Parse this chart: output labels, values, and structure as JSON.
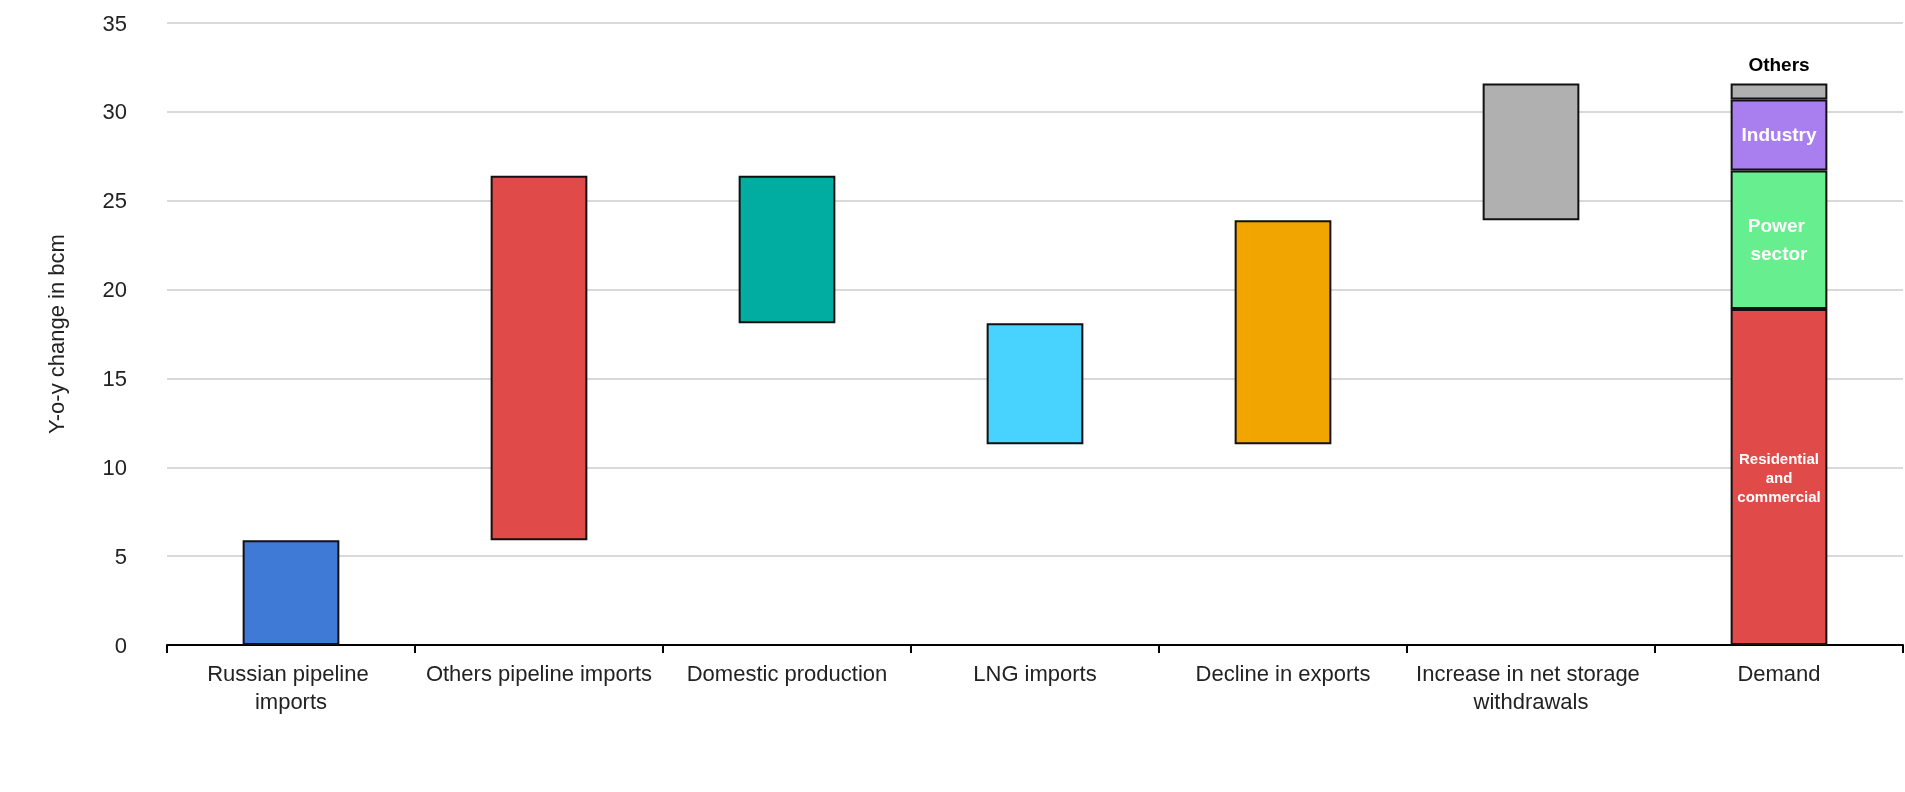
{
  "chart_data": {
    "type": "bar",
    "ylabel": "Y-o-y change in bcm",
    "stacked": true,
    "categories": [
      "Russian pipeline imports",
      "Others pipeline imports",
      "Domestic production",
      "LNG imports",
      "Decline in exports",
      "Increase in net storage withdrawals",
      "Demand"
    ],
    "series": [
      {
        "values": [
          5.9,
          20.5,
          8.3,
          6.8,
          12.6,
          7.7,
          null
        ],
        "base": [
          0,
          5.9,
          18.1,
          11.3,
          11.3,
          23.9,
          null
        ],
        "colors": [
          "#3f7bd6",
          "#e04a48",
          "#00ada0",
          "#48d3fe",
          "#f0a500",
          "#b0b0b0",
          null
        ]
      },
      {
        "name": "Residential and commercial",
        "color": "#e04a48",
        "values": [
          null,
          null,
          null,
          null,
          null,
          null,
          18.9
        ]
      },
      {
        "name": "Power sector",
        "color": "#66ee8f",
        "values": [
          null,
          null,
          null,
          null,
          null,
          null,
          7.8
        ]
      },
      {
        "name": "Industry",
        "color": "#a97ff0",
        "values": [
          null,
          null,
          null,
          null,
          null,
          null,
          4.0
        ]
      },
      {
        "name": "Others",
        "color": "#b0b0b0",
        "values": [
          null,
          null,
          null,
          null,
          null,
          null,
          0.9
        ]
      }
    ],
    "ylim": [
      0,
      35
    ],
    "yticks": [
      0,
      5,
      10,
      15,
      20,
      25,
      30,
      35
    ],
    "grid": "y",
    "legend": false
  }
}
